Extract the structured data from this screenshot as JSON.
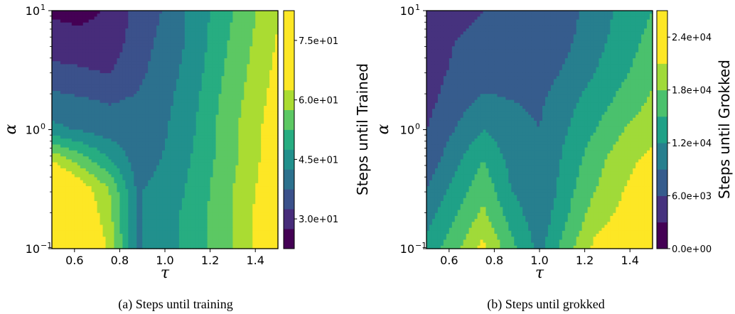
{
  "chart_data": [
    {
      "type": "heatmap",
      "subtype": "filled-contour",
      "caption": "(a) Steps until training",
      "xlabel": "τ",
      "ylabel": "α",
      "colorbar_label": "Steps until Trained",
      "yscale": "log",
      "xlim": [
        0.5,
        1.5
      ],
      "ylim": [
        0.1,
        10
      ],
      "x": [
        0.5,
        0.625,
        0.75,
        0.875,
        1.0,
        1.125,
        1.25,
        1.375,
        1.5
      ],
      "y": [
        0.1,
        0.178,
        0.316,
        0.562,
        1.0,
        1.78,
        3.16,
        5.62,
        10
      ],
      "z": [
        [
          79,
          70,
          62,
          42,
          45,
          50,
          55,
          62,
          68
        ],
        [
          77,
          68,
          60,
          42,
          45,
          50,
          55,
          62,
          68
        ],
        [
          74,
          66,
          58,
          42,
          44,
          49,
          55,
          61,
          68
        ],
        [
          62,
          55,
          48,
          40,
          43,
          48,
          54,
          60,
          67
        ],
        [
          44,
          42,
          40,
          39,
          42,
          47,
          54,
          60,
          66
        ],
        [
          39,
          38,
          37,
          38,
          41,
          46,
          53,
          59,
          65
        ],
        [
          34,
          33,
          32,
          36,
          40,
          45,
          52,
          58,
          64
        ],
        [
          29,
          29,
          29,
          35,
          39,
          44,
          51,
          57,
          63
        ],
        [
          27,
          26,
          28,
          34,
          38,
          44,
          50,
          56,
          62
        ]
      ],
      "levels": [
        22.5,
        27.5,
        32.5,
        37.5,
        42.5,
        47.5,
        52.5,
        57.5,
        62.5,
        67.5,
        72.5,
        77.5,
        82.5
      ],
      "colors": [
        "#440154",
        "#472c7a",
        "#3b518b",
        "#2c718e",
        "#21908d",
        "#27ad81",
        "#5cc863",
        "#aadc32",
        "#fde725"
      ],
      "xticks": [
        "0.6",
        "0.8",
        "1.0",
        "1.2",
        "1.4"
      ],
      "xtick_values": [
        0.6,
        0.8,
        1.0,
        1.2,
        1.4
      ],
      "yticks": [
        "10",
        "10",
        "10"
      ],
      "ytick_exponents": [
        "−1",
        "0",
        "1"
      ],
      "ytick_values": [
        0.1,
        1,
        10
      ],
      "colorbar_ticks": [
        "3.0e+01",
        "4.5e+01",
        "6.0e+01",
        "7.5e+01"
      ],
      "colorbar_tick_values": [
        30,
        45,
        60,
        75
      ]
    },
    {
      "type": "heatmap",
      "subtype": "filled-contour",
      "caption": "(b) Steps until grokked",
      "xlabel": "τ",
      "ylabel": "α",
      "colorbar_label": "Steps until Grokked",
      "yscale": "log",
      "xlim": [
        0.5,
        1.5
      ],
      "ylim": [
        0.1,
        10
      ],
      "x": [
        0.5,
        0.625,
        0.75,
        0.875,
        1.0,
        1.125,
        1.25,
        1.375,
        1.5
      ],
      "y": [
        0.1,
        0.178,
        0.316,
        0.562,
        1.0,
        1.78,
        3.16,
        5.62,
        10
      ],
      "z": [
        [
          13000,
          17000,
          22000,
          16000,
          11000,
          17000,
          22000,
          23000,
          24000
        ],
        [
          11000,
          15000,
          19000,
          14000,
          10000,
          15000,
          20000,
          22000,
          23000
        ],
        [
          9000,
          13000,
          17000,
          12000,
          9000,
          14000,
          18000,
          21000,
          23000
        ],
        [
          7000,
          11000,
          15000,
          11000,
          9000,
          13000,
          17000,
          20000,
          22000
        ],
        [
          6000,
          9000,
          12000,
          10000,
          9000,
          12000,
          15000,
          18000,
          20000
        ],
        [
          5000,
          7500,
          9500,
          9000,
          8500,
          11000,
          13500,
          16000,
          18500
        ],
        [
          4500,
          6500,
          7500,
          7500,
          7500,
          9500,
          12000,
          14500,
          17000
        ],
        [
          4000,
          6000,
          6500,
          6500,
          7000,
          8500,
          11000,
          13500,
          16000
        ],
        [
          3500,
          5500,
          6000,
          6000,
          6500,
          8000,
          10500,
          13000,
          15000
        ]
      ],
      "levels": [
        0,
        3000,
        6000,
        9000,
        12000,
        15000,
        18000,
        21000,
        24000,
        27000
      ],
      "colors": [
        "#440154",
        "#46327e",
        "#365c8d",
        "#277f8e",
        "#1fa187",
        "#4ac16d",
        "#a0da39",
        "#fde725",
        "#fde725"
      ],
      "xticks": [
        "0.6",
        "0.8",
        "1.0",
        "1.2",
        "1.4"
      ],
      "xtick_values": [
        0.6,
        0.8,
        1.0,
        1.2,
        1.4
      ],
      "yticks": [
        "10",
        "10",
        "10"
      ],
      "ytick_exponents": [
        "−1",
        "0",
        "1"
      ],
      "ytick_values": [
        0.1,
        1,
        10
      ],
      "colorbar_ticks": [
        "0.0e+00",
        "6.0e+03",
        "1.2e+04",
        "1.8e+04",
        "2.4e+04"
      ],
      "colorbar_tick_values": [
        0,
        6000,
        12000,
        18000,
        24000
      ]
    }
  ]
}
